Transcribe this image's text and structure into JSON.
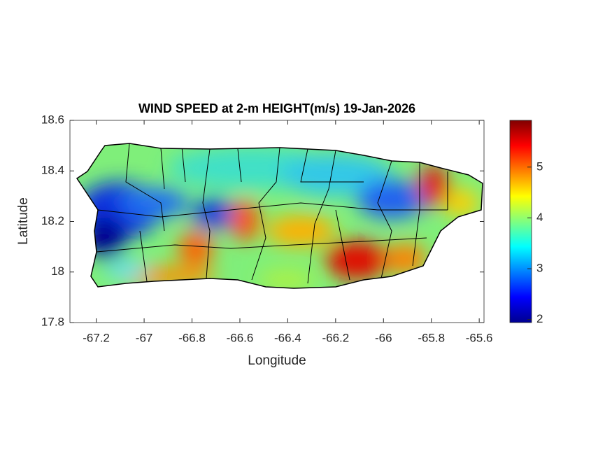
{
  "chart_data": {
    "type": "map",
    "title": "WIND SPEED at 2-m HEIGHT(m/s) 19-Jan-2026",
    "x_label": "Longitude",
    "y_label": "Latitude",
    "xlim": [
      -67.31,
      -65.58
    ],
    "ylim": [
      17.8,
      18.6
    ],
    "xticks": [
      -67.2,
      -67,
      -66.8,
      -66.6,
      -66.4,
      -66.2,
      -66,
      -65.8,
      -65.6
    ],
    "yticks": [
      17.8,
      18,
      18.2,
      18.4,
      18.6
    ],
    "colorbar": {
      "colormap": "jet",
      "clim": [
        1.94,
        5.92
      ],
      "ticks": [
        2,
        3,
        4,
        5
      ]
    }
  }
}
